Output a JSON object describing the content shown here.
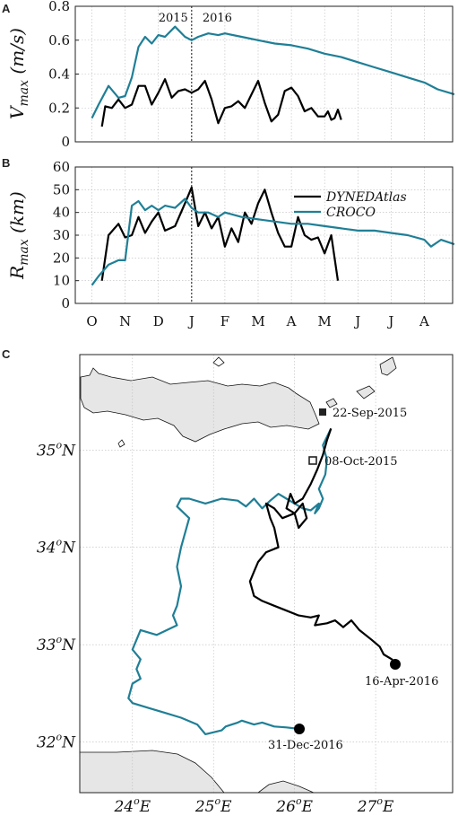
{
  "colors": {
    "croco": "#1f7f96",
    "dyned": "#000000",
    "land": "#e6e6e6",
    "grid": "#bbbbbb"
  },
  "chart_data": [
    {
      "panel": "A",
      "type": "line",
      "ylabel": "V_max (m/s)",
      "ylabel_parts": [
        "V",
        "max",
        " (m/s)"
      ],
      "ylim": [
        0,
        0.8
      ],
      "yticks": [
        "0",
        "0.2",
        "0.4",
        "0.6",
        "0.8"
      ],
      "ytick_values": [
        0,
        0.2,
        0.4,
        0.6,
        0.8
      ],
      "year_labels": [
        "2015",
        "2016"
      ],
      "divider_month": 3,
      "series": [
        {
          "name": "CROCO",
          "x": [
            0.0,
            0.2,
            0.5,
            0.8,
            1.0,
            1.2,
            1.4,
            1.6,
            1.8,
            2.0,
            2.2,
            2.5,
            2.8,
            3.0,
            3.2,
            3.5,
            3.8,
            4.0,
            4.5,
            5.0,
            5.5,
            6.0,
            6.5,
            7.0,
            7.5,
            8.0,
            8.5,
            9.0,
            9.5,
            10.0,
            10.4,
            10.9
          ],
          "values": [
            0.14,
            0.22,
            0.33,
            0.26,
            0.27,
            0.38,
            0.56,
            0.62,
            0.58,
            0.63,
            0.62,
            0.68,
            0.62,
            0.6,
            0.62,
            0.64,
            0.63,
            0.64,
            0.62,
            0.6,
            0.58,
            0.57,
            0.55,
            0.52,
            0.5,
            0.47,
            0.44,
            0.41,
            0.38,
            0.35,
            0.31,
            0.28
          ]
        },
        {
          "name": "DYNEDAtlas",
          "x": [
            0.3,
            0.4,
            0.6,
            0.8,
            1.0,
            1.2,
            1.4,
            1.6,
            1.8,
            2.0,
            2.2,
            2.4,
            2.6,
            2.8,
            3.0,
            3.2,
            3.4,
            3.6,
            3.8,
            4.0,
            4.2,
            4.4,
            4.6,
            4.8,
            5.0,
            5.2,
            5.4,
            5.6,
            5.8,
            6.0,
            6.2,
            6.4,
            6.6,
            6.8,
            7.0,
            7.1,
            7.2,
            7.3,
            7.4,
            7.5
          ],
          "values": [
            0.09,
            0.21,
            0.2,
            0.25,
            0.2,
            0.22,
            0.33,
            0.33,
            0.22,
            0.29,
            0.37,
            0.26,
            0.3,
            0.31,
            0.29,
            0.31,
            0.36,
            0.25,
            0.11,
            0.2,
            0.21,
            0.24,
            0.2,
            0.28,
            0.36,
            0.23,
            0.12,
            0.16,
            0.3,
            0.32,
            0.27,
            0.18,
            0.2,
            0.15,
            0.15,
            0.18,
            0.13,
            0.14,
            0.19,
            0.13
          ]
        }
      ]
    },
    {
      "panel": "B",
      "type": "line",
      "ylabel": "R_max (km)",
      "ylabel_parts": [
        "R",
        "max",
        " (km)"
      ],
      "ylim": [
        0,
        60
      ],
      "yticks": [
        "0",
        "10",
        "20",
        "30",
        "40",
        "50",
        "60"
      ],
      "ytick_values": [
        0,
        10,
        20,
        30,
        40,
        50,
        60
      ],
      "categories": [
        "O",
        "N",
        "D",
        "J",
        "F",
        "M",
        "A",
        "M",
        "J",
        "J",
        "A"
      ],
      "legend": [
        "DYNEDAtlas",
        "CROCO"
      ],
      "divider_month": 3,
      "series": [
        {
          "name": "DYNEDAtlas",
          "x": [
            0.3,
            0.5,
            0.8,
            1.0,
            1.2,
            1.4,
            1.6,
            1.8,
            2.0,
            2.2,
            2.5,
            2.8,
            3.0,
            3.2,
            3.4,
            3.6,
            3.8,
            4.0,
            4.2,
            4.4,
            4.6,
            4.8,
            5.0,
            5.2,
            5.4,
            5.6,
            5.8,
            6.0,
            6.2,
            6.4,
            6.6,
            6.8,
            7.0,
            7.2,
            7.4
          ],
          "values": [
            10,
            30,
            35,
            29,
            30,
            38,
            31,
            36,
            40,
            32,
            34,
            44,
            51,
            34,
            40,
            33,
            38,
            25,
            33,
            27,
            40,
            35,
            44,
            50,
            40,
            31,
            25,
            25,
            38,
            30,
            28,
            29,
            22,
            30,
            10
          ]
        },
        {
          "name": "CROCO",
          "x": [
            0.0,
            0.2,
            0.5,
            0.8,
            1.0,
            1.2,
            1.4,
            1.6,
            1.8,
            2.0,
            2.2,
            2.5,
            2.8,
            3.0,
            3.2,
            3.5,
            3.8,
            4.0,
            4.5,
            5.0,
            5.5,
            6.0,
            6.5,
            7.0,
            7.5,
            8.0,
            8.5,
            9.0,
            9.5,
            10.0,
            10.2,
            10.5,
            10.9
          ],
          "values": [
            8,
            12,
            17,
            19,
            19,
            43,
            45,
            41,
            43,
            41,
            43,
            42,
            46,
            42,
            40,
            40,
            38,
            40,
            38,
            37,
            36,
            35,
            35,
            34,
            33,
            32,
            32,
            31,
            30,
            28,
            25,
            28,
            26
          ]
        }
      ]
    },
    {
      "panel": "C",
      "type": "line",
      "xticks": [
        "24",
        "25",
        "26",
        "27"
      ],
      "xtick_values": [
        24,
        25,
        26,
        27
      ],
      "x_suffix": "E",
      "yticks": [
        "32",
        "33",
        "34",
        "35"
      ],
      "ytick_values": [
        32,
        33,
        34,
        35
      ],
      "y_suffix": "N",
      "xlim": [
        23.35,
        27.95
      ],
      "ylim": [
        31.48,
        35.98
      ],
      "annotations": [
        "22-Sep-2015",
        "08-Oct-2015",
        "16-Apr-2016",
        "31-Dec-2016"
      ],
      "series": [
        {
          "name": "CROCO",
          "lon": [
            26.45,
            26.35,
            26.4,
            26.38,
            26.3,
            26.35,
            26.3,
            26.25,
            26.3,
            26.2,
            26.1,
            26.0,
            25.9,
            25.8,
            25.7,
            25.6,
            25.5,
            25.4,
            25.3,
            25.1,
            24.9,
            24.7,
            24.6,
            24.55,
            24.7,
            24.6,
            24.55,
            24.6,
            24.55,
            24.5,
            24.55,
            24.3,
            24.1,
            24.0,
            24.1,
            24.05,
            24.1,
            24.0,
            23.95,
            24.0,
            24.2,
            24.4,
            24.6,
            24.8,
            24.9,
            25.1,
            25.15,
            25.3,
            25.35,
            25.5,
            25.6,
            25.75,
            25.9,
            26.0,
            26.1
          ],
          "lat": [
            35.22,
            35.05,
            34.9,
            34.75,
            34.6,
            34.5,
            34.4,
            34.35,
            34.45,
            34.38,
            34.4,
            34.45,
            34.5,
            34.55,
            34.48,
            34.4,
            34.5,
            34.42,
            34.48,
            34.5,
            34.45,
            34.5,
            34.5,
            34.42,
            34.3,
            34.0,
            33.8,
            33.6,
            33.4,
            33.3,
            33.2,
            33.1,
            33.15,
            32.95,
            32.85,
            32.75,
            32.65,
            32.6,
            32.45,
            32.4,
            32.35,
            32.3,
            32.25,
            32.18,
            32.08,
            32.12,
            32.16,
            32.2,
            32.22,
            32.18,
            32.2,
            32.16,
            32.15,
            32.14,
            32.15
          ]
        },
        {
          "name": "DYNEDAtlas",
          "lon": [
            26.45,
            26.4,
            26.35,
            26.28,
            26.2,
            26.1,
            26.0,
            25.95,
            25.9,
            26.0,
            26.1,
            26.15,
            26.05,
            26.0,
            25.85,
            25.75,
            25.65,
            25.7,
            25.75,
            25.8,
            25.65,
            25.55,
            25.5,
            25.45,
            25.5,
            25.6,
            25.75,
            25.9,
            26.05,
            26.2,
            26.3,
            26.25,
            26.4,
            26.5,
            26.6,
            26.7,
            26.8,
            26.95,
            27.05,
            27.1,
            27.2,
            27.25
          ],
          "lat": [
            35.22,
            35.1,
            34.95,
            34.8,
            34.65,
            34.5,
            34.45,
            34.55,
            34.4,
            34.35,
            34.45,
            34.3,
            34.2,
            34.35,
            34.3,
            34.4,
            34.45,
            34.3,
            34.2,
            34.0,
            33.95,
            33.85,
            33.75,
            33.65,
            33.5,
            33.45,
            33.4,
            33.35,
            33.3,
            33.28,
            33.3,
            33.2,
            33.22,
            33.25,
            33.18,
            33.25,
            33.15,
            33.05,
            32.98,
            32.9,
            32.85,
            32.8
          ]
        }
      ]
    }
  ]
}
